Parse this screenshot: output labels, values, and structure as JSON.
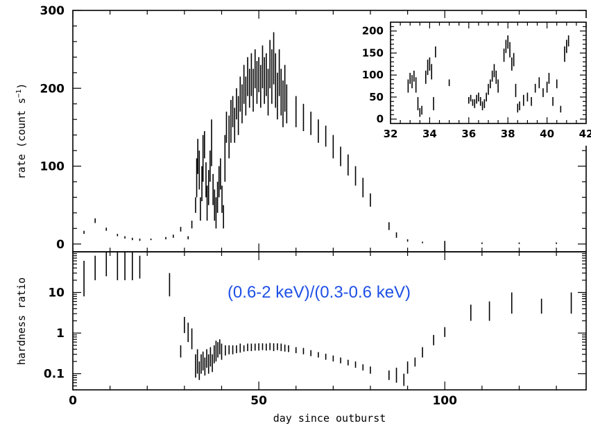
{
  "chart_data": [
    {
      "id": "rate",
      "type": "scatter",
      "style": "vertical error bars",
      "ylabel_main": "rate (count s",
      "ylabel_sup": "−1",
      "ylabel_close": ")",
      "xlim": [
        0,
        138
      ],
      "ylim": [
        -10,
        300
      ],
      "x_ticks": [
        0,
        50,
        100
      ],
      "y_ticks": [
        0,
        100,
        200,
        300
      ],
      "y_tick_labels": [
        "0",
        "100",
        "200",
        "300"
      ],
      "grid": false,
      "segments": [
        [
          3,
          13,
          17
        ],
        [
          6,
          27,
          33
        ],
        [
          9,
          17,
          21
        ],
        [
          12,
          10,
          13
        ],
        [
          14,
          7,
          10
        ],
        [
          16,
          5,
          8
        ],
        [
          18,
          4,
          7
        ],
        [
          21,
          5,
          7
        ],
        [
          25,
          6,
          9
        ],
        [
          27,
          8,
          12
        ],
        [
          29,
          16,
          22
        ],
        [
          31,
          6,
          10
        ],
        [
          32,
          20,
          30
        ],
        [
          33,
          40,
          60
        ],
        [
          33.3,
          60,
          110
        ],
        [
          33.6,
          90,
          135
        ],
        [
          34,
          70,
          120
        ],
        [
          34.3,
          30,
          60
        ],
        [
          34.7,
          55,
          100
        ],
        [
          35,
          80,
          140
        ],
        [
          35.4,
          110,
          145
        ],
        [
          35.8,
          60,
          105
        ],
        [
          36.1,
          30,
          75
        ],
        [
          36.5,
          50,
          95
        ],
        [
          36.9,
          80,
          120
        ],
        [
          37.3,
          100,
          160
        ],
        [
          37.7,
          50,
          90
        ],
        [
          38.1,
          30,
          70
        ],
        [
          38.5,
          20,
          60
        ],
        [
          38.9,
          40,
          80
        ],
        [
          39.3,
          60,
          100
        ],
        [
          39.7,
          70,
          110
        ],
        [
          40.1,
          40,
          75
        ],
        [
          40.5,
          20,
          50
        ],
        [
          40.9,
          80,
          140
        ],
        [
          41.3,
          130,
          170
        ],
        [
          42,
          110,
          165
        ],
        [
          42.5,
          130,
          185
        ],
        [
          43,
          150,
          190
        ],
        [
          43.5,
          130,
          175
        ],
        [
          44,
          160,
          200
        ],
        [
          44.5,
          140,
          190
        ],
        [
          45,
          170,
          215
        ],
        [
          45.5,
          155,
          205
        ],
        [
          46,
          180,
          230
        ],
        [
          46.5,
          165,
          215
        ],
        [
          47,
          190,
          240
        ],
        [
          47.5,
          175,
          225
        ],
        [
          48,
          190,
          245
        ],
        [
          48.5,
          170,
          225
        ],
        [
          49,
          200,
          250
        ],
        [
          49.5,
          180,
          235
        ],
        [
          50,
          195,
          240
        ],
        [
          50.5,
          175,
          230
        ],
        [
          51,
          200,
          255
        ],
        [
          51.5,
          180,
          240
        ],
        [
          52,
          190,
          245
        ],
        [
          52.5,
          165,
          225
        ],
        [
          53,
          200,
          262
        ],
        [
          53.5,
          180,
          250
        ],
        [
          54,
          205,
          272
        ],
        [
          54.5,
          175,
          245
        ],
        [
          55,
          160,
          220
        ],
        [
          55.5,
          190,
          250
        ],
        [
          56,
          165,
          225
        ],
        [
          56.5,
          150,
          210
        ],
        [
          57,
          170,
          230
        ],
        [
          57.5,
          155,
          205
        ],
        [
          60,
          150,
          190
        ],
        [
          62,
          145,
          180
        ],
        [
          64,
          140,
          170
        ],
        [
          66,
          130,
          160
        ],
        [
          68,
          125,
          152
        ],
        [
          70,
          110,
          140
        ],
        [
          72,
          100,
          125
        ],
        [
          74,
          88,
          115
        ],
        [
          76,
          75,
          100
        ],
        [
          78,
          60,
          85
        ],
        [
          80,
          48,
          65
        ],
        [
          85,
          18,
          28
        ],
        [
          87,
          8,
          15
        ],
        [
          90,
          3,
          6
        ],
        [
          94,
          1,
          3
        ],
        [
          100,
          -10,
          4
        ],
        [
          110,
          0,
          2
        ],
        [
          120,
          0,
          2
        ],
        [
          130,
          0,
          2
        ]
      ]
    },
    {
      "id": "hardness",
      "type": "scatter",
      "style": "vertical error bars",
      "xlabel": "day since outburst",
      "ylabel": "hardness ratio",
      "annotation": "(0.6-2 keV)/(0.3-0.6 keV)",
      "yscale": "log",
      "xlim": [
        0,
        138
      ],
      "ylim": [
        0.04,
        100
      ],
      "x_ticks": [
        0,
        50,
        100
      ],
      "x_tick_labels": [
        "0",
        "50",
        "100"
      ],
      "y_ticks": [
        0.1,
        1,
        10
      ],
      "y_tick_labels": [
        "0.1",
        "1",
        "10"
      ],
      "grid": false,
      "segments": [
        [
          3,
          8,
          60
        ],
        [
          6,
          20,
          80
        ],
        [
          9,
          25,
          100
        ],
        [
          12,
          20,
          100
        ],
        [
          14,
          20,
          100
        ],
        [
          16,
          20,
          100
        ],
        [
          18,
          22,
          80
        ],
        [
          26,
          8,
          30
        ],
        [
          29,
          0.25,
          0.5
        ],
        [
          30,
          1,
          2.5
        ],
        [
          31,
          0.6,
          1.8
        ],
        [
          32,
          0.4,
          1.3
        ],
        [
          33,
          0.08,
          0.3
        ],
        [
          33.5,
          0.1,
          0.4
        ],
        [
          34,
          0.07,
          0.2
        ],
        [
          34.5,
          0.1,
          0.3
        ],
        [
          35,
          0.12,
          0.35
        ],
        [
          35.5,
          0.09,
          0.25
        ],
        [
          36,
          0.14,
          0.4
        ],
        [
          36.5,
          0.1,
          0.3
        ],
        [
          37,
          0.15,
          0.45
        ],
        [
          37.5,
          0.11,
          0.3
        ],
        [
          38,
          0.18,
          0.5
        ],
        [
          38.5,
          0.2,
          0.65
        ],
        [
          39,
          0.25,
          0.6
        ],
        [
          39.5,
          0.3,
          0.7
        ],
        [
          40,
          0.22,
          0.55
        ],
        [
          41,
          0.28,
          0.5
        ],
        [
          42,
          0.3,
          0.5
        ],
        [
          43,
          0.3,
          0.5
        ],
        [
          44,
          0.32,
          0.5
        ],
        [
          45,
          0.33,
          0.55
        ],
        [
          46,
          0.35,
          0.5
        ],
        [
          47,
          0.36,
          0.55
        ],
        [
          48,
          0.36,
          0.55
        ],
        [
          49,
          0.37,
          0.55
        ],
        [
          50,
          0.37,
          0.56
        ],
        [
          51,
          0.38,
          0.56
        ],
        [
          52,
          0.37,
          0.55
        ],
        [
          53,
          0.38,
          0.57
        ],
        [
          54,
          0.36,
          0.56
        ],
        [
          55,
          0.38,
          0.56
        ],
        [
          56,
          0.36,
          0.55
        ],
        [
          57,
          0.35,
          0.52
        ],
        [
          58,
          0.34,
          0.5
        ],
        [
          60,
          0.32,
          0.45
        ],
        [
          62,
          0.3,
          0.43
        ],
        [
          64,
          0.27,
          0.38
        ],
        [
          66,
          0.25,
          0.34
        ],
        [
          68,
          0.22,
          0.31
        ],
        [
          70,
          0.2,
          0.28
        ],
        [
          72,
          0.18,
          0.25
        ],
        [
          74,
          0.16,
          0.22
        ],
        [
          76,
          0.14,
          0.2
        ],
        [
          78,
          0.12,
          0.17
        ],
        [
          80,
          0.1,
          0.15
        ],
        [
          85,
          0.07,
          0.12
        ],
        [
          87,
          0.06,
          0.14
        ],
        [
          89,
          0.05,
          0.1
        ],
        [
          90,
          0.1,
          0.2
        ],
        [
          92,
          0.15,
          0.25
        ],
        [
          94,
          0.25,
          0.45
        ],
        [
          97,
          0.5,
          0.9
        ],
        [
          100,
          0.8,
          1.4
        ],
        [
          107,
          2,
          5
        ],
        [
          112,
          2,
          6
        ],
        [
          118,
          3,
          10
        ],
        [
          126,
          3,
          7
        ],
        [
          134,
          3,
          10
        ]
      ]
    },
    {
      "id": "inset",
      "type": "scatter",
      "style": "vertical error bars",
      "xlim": [
        32,
        42
      ],
      "ylim": [
        -10,
        220
      ],
      "x_ticks": [
        32,
        34,
        36,
        38,
        40,
        42
      ],
      "x_tick_labels": [
        "32",
        "34",
        "36",
        "38",
        "40",
        "42"
      ],
      "y_ticks": [
        0,
        50,
        100,
        150,
        200
      ],
      "y_tick_labels": [
        "0",
        "50",
        "100",
        "150",
        "200"
      ],
      "grid": false,
      "segments": [
        [
          32.9,
          60,
          90
        ],
        [
          33,
          80,
          105
        ],
        [
          33.1,
          70,
          100
        ],
        [
          33.2,
          85,
          110
        ],
        [
          33.3,
          60,
          95
        ],
        [
          33.4,
          20,
          50
        ],
        [
          33.5,
          5,
          25
        ],
        [
          33.6,
          10,
          30
        ],
        [
          33.8,
          80,
          110
        ],
        [
          33.9,
          100,
          135
        ],
        [
          34,
          110,
          140
        ],
        [
          34.1,
          90,
          125
        ],
        [
          34.2,
          20,
          50
        ],
        [
          34.3,
          140,
          165
        ],
        [
          35,
          75,
          90
        ],
        [
          36,
          35,
          50
        ],
        [
          36.1,
          40,
          55
        ],
        [
          36.2,
          30,
          45
        ],
        [
          36.3,
          25,
          45
        ],
        [
          36.4,
          35,
          55
        ],
        [
          36.5,
          40,
          60
        ],
        [
          36.6,
          30,
          50
        ],
        [
          36.7,
          20,
          40
        ],
        [
          36.8,
          25,
          45
        ],
        [
          36.9,
          40,
          60
        ],
        [
          37,
          55,
          80
        ],
        [
          37.1,
          70,
          90
        ],
        [
          37.2,
          85,
          110
        ],
        [
          37.3,
          95,
          125
        ],
        [
          37.4,
          80,
          110
        ],
        [
          37.5,
          60,
          90
        ],
        [
          37.8,
          130,
          160
        ],
        [
          37.9,
          150,
          180
        ],
        [
          38,
          160,
          190
        ],
        [
          38.1,
          140,
          175
        ],
        [
          38.2,
          110,
          140
        ],
        [
          38.3,
          120,
          150
        ],
        [
          38.4,
          50,
          80
        ],
        [
          38.5,
          15,
          35
        ],
        [
          38.6,
          20,
          40
        ],
        [
          38.8,
          30,
          55
        ],
        [
          39,
          40,
          60
        ],
        [
          39.2,
          30,
          50
        ],
        [
          39.4,
          60,
          80
        ],
        [
          39.6,
          70,
          95
        ],
        [
          39.8,
          50,
          70
        ],
        [
          40,
          60,
          85
        ],
        [
          40.1,
          80,
          105
        ],
        [
          40.3,
          30,
          50
        ],
        [
          40.5,
          70,
          90
        ],
        [
          40.7,
          15,
          30
        ],
        [
          40.9,
          130,
          165
        ],
        [
          41,
          150,
          180
        ],
        [
          41.1,
          165,
          190
        ]
      ]
    }
  ]
}
